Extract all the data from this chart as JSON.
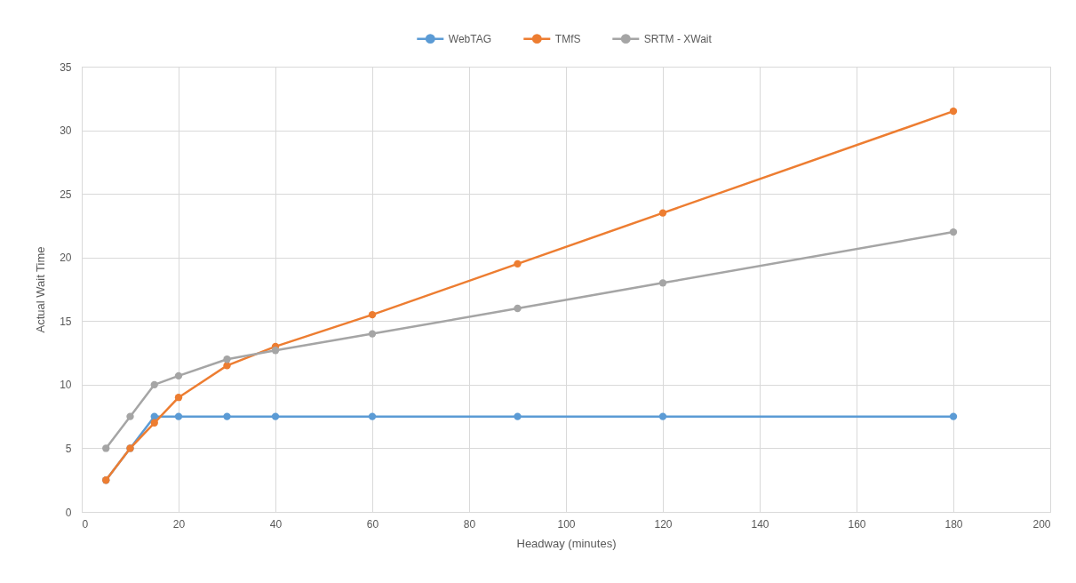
{
  "chart_data": {
    "type": "line",
    "xlabel": "Headway (minutes)",
    "ylabel": "Actual Wait Time",
    "x": [
      5,
      10,
      15,
      20,
      30,
      40,
      60,
      90,
      120,
      180
    ],
    "series": [
      {
        "name": "WebTAG",
        "color": "#5b9bd5",
        "values": [
          2.5,
          5,
          7.5,
          7.5,
          7.5,
          7.5,
          7.5,
          7.5,
          7.5,
          7.5
        ]
      },
      {
        "name": "TMfS",
        "color": "#ed7d31",
        "values": [
          2.5,
          5,
          7,
          9,
          11.5,
          13,
          15.5,
          19.5,
          23.5,
          31.5
        ]
      },
      {
        "name": "SRTM - XWait",
        "color": "#a5a5a5",
        "values": [
          5,
          7.5,
          10,
          10.7,
          12,
          12.7,
          14,
          16,
          18,
          22
        ]
      }
    ],
    "xlim": [
      0,
      200
    ],
    "xticks": [
      0,
      20,
      40,
      60,
      80,
      100,
      120,
      140,
      160,
      180,
      200
    ],
    "ylim": [
      0,
      35
    ],
    "yticks": [
      0,
      5,
      10,
      15,
      20,
      25,
      30,
      35
    ],
    "grid": true,
    "legend": "top",
    "marker": "circle",
    "line_style": "solid"
  }
}
